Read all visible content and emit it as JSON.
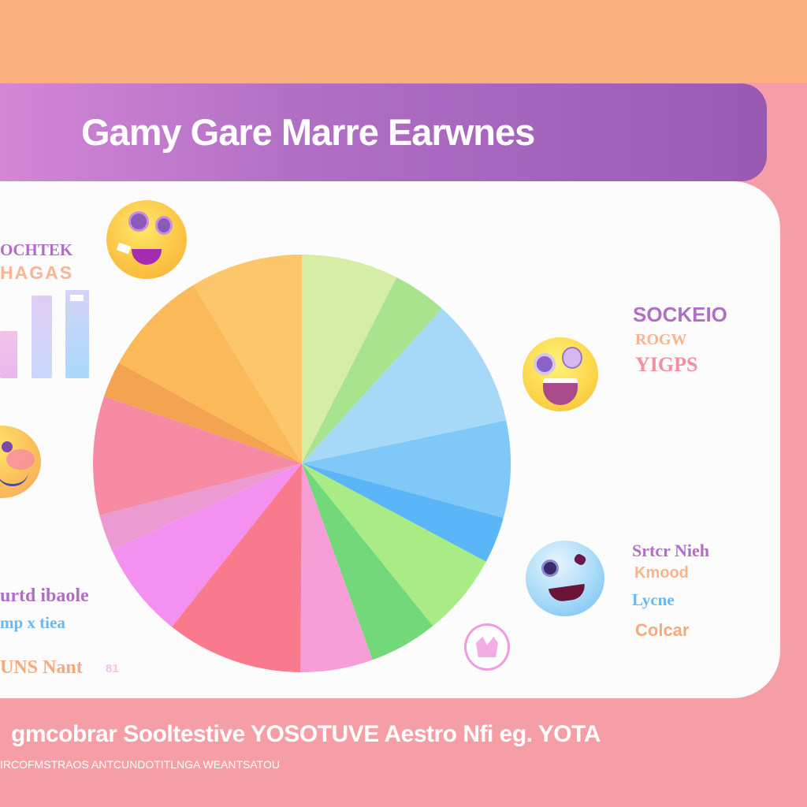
{
  "header": {
    "title": "Gamy Gare Marre Earwnes"
  },
  "left_panel": {
    "label_top_1": "OCHTEK",
    "label_top_2": "HAGAS",
    "label_bottom_1": "urtd ibaole",
    "label_bottom_2": "mp x tiea",
    "label_bottom_3": "UNS Nant",
    "label_bottom_3_suffix": "81",
    "mini_bars": [
      {
        "height": 60,
        "color": "#f0c4e8"
      },
      {
        "height": 105,
        "color": "#d8d2f4"
      },
      {
        "height": 112,
        "color": "#bfe0fb"
      }
    ]
  },
  "right_panel": {
    "group_1": {
      "line_1": "SOCKEIO",
      "line_2": "ROGW",
      "line_3": "YIGPS"
    },
    "group_2": {
      "line_1": "Srtcr Nieh",
      "line_2": "Kmood",
      "line_3": "Lycne",
      "line_4": "Colcar"
    }
  },
  "footer": {
    "title": "gmcobrar Sooltestive YOSOTUVE Aestro Nfi eg. YOTA",
    "subtitle": "IRCOFMSTRAOS ANTCUNDOTITLNGA WEANTSATOU"
  },
  "colors": {
    "top_band": "#fdb07f",
    "title_bar_start": "#d486d6",
    "title_bar_end": "#9a5ab4",
    "background": "#f59ea6",
    "card": "#fcfcfc",
    "label_purple": "#b06fc4",
    "label_orange": "#f9a87b",
    "label_pink": "#f58ea0",
    "label_blue": "#6bb8f0"
  },
  "chart_data": {
    "type": "pie",
    "title": "Gamy Gare Marre Earwnes",
    "labels_note": "No slice labels or values shown; values estimated from slice angles (percent of 360°)",
    "categories": [
      "Yellow-green",
      "Green",
      "Light blue",
      "Sky blue",
      "Blue",
      "Lime green",
      "Green 2",
      "Pink",
      "Red-pink",
      "Magenta",
      "Pink band",
      "Salmon pink",
      "Orange",
      "Amber",
      "Yellow"
    ],
    "values": [
      7.5,
      4.2,
      10.0,
      7.5,
      3.6,
      6.4,
      5.3,
      5.6,
      10.6,
      7.5,
      2.8,
      9.2,
      2.8,
      8.3,
      8.7
    ],
    "colors": [
      "#d6eda6",
      "#a8e38e",
      "#a6d8f8",
      "#7fc8f8",
      "#5ab6f6",
      "#a9ec86",
      "#72d87a",
      "#f79ed8",
      "#f87a8c",
      "#f490f0",
      "#ec9ad2",
      "#f78ba3",
      "#f4a451",
      "#fbb95a",
      "#fcc66b"
    ]
  }
}
